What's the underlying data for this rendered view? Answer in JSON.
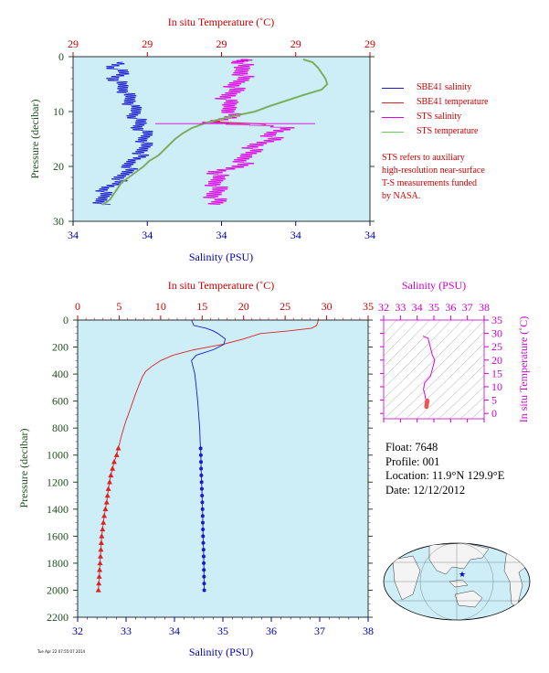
{
  "colors": {
    "plot_bg": "#cdeef7",
    "salinity_axis": "#0000aa",
    "temperature_axis": "#cc0000",
    "ts_axis": "#cc00cc",
    "pressure_axis": "#1f4d1f",
    "sbe_sal": "#1a1acc",
    "sbe_temp": "#dd2222",
    "sts_sal": "#e000e0",
    "sts_temp": "#66cc55"
  },
  "legend": {
    "sbe_sal": "SBE41 salinity",
    "sbe_temp": "SBE41 temperature",
    "sts_sal": "STS salinity",
    "sts_temp": "STS temperature"
  },
  "note": {
    "line1": "STS refers to auxiliary",
    "line2": "high-resolution near-surface",
    "line3": "T-S measurements funded",
    "line4": "by NASA."
  },
  "info": {
    "float": "Float:  7648",
    "profile": "Profile:  001",
    "location": "Location:  11.9°N  129.9°E",
    "date": "Date:  12/12/2012"
  },
  "footnote": "Tue Apr 22 07:55:07 2014",
  "chart_data": [
    {
      "type": "line",
      "xlabel_top": "In situ Temperature (˚C)",
      "xlabel_bottom": "Salinity (PSU)",
      "ylabel": "Pressure (decibar)",
      "top_ticks": [
        "29",
        "29",
        "29",
        "29",
        "29"
      ],
      "bottom_ticks": [
        "34",
        "34",
        "34",
        "34",
        "34"
      ],
      "y_ticks": [
        "0",
        "10",
        "20",
        "30"
      ],
      "ylim": [
        0,
        30
      ],
      "sal_lim": [
        34.15,
        34.55
      ],
      "temp_lim": [
        28.6,
        29.4
      ],
      "series": [
        {
          "key": "sbe_sal",
          "p": [
            1,
            2,
            3,
            4,
            5,
            6,
            7,
            8,
            9,
            10,
            11,
            12,
            13,
            14,
            15,
            16,
            17,
            18,
            19,
            20,
            21,
            22,
            23,
            24,
            25,
            26,
            27
          ],
          "v": [
            34.217,
            34.205,
            34.218,
            34.207,
            34.213,
            34.22,
            34.222,
            34.228,
            34.228,
            34.235,
            34.234,
            34.24,
            34.24,
            34.248,
            34.247,
            34.245,
            34.245,
            34.24,
            34.228,
            34.228,
            34.222,
            34.217,
            34.208,
            34.195,
            34.19,
            34.19,
            34.188
          ]
        },
        {
          "key": "sts_sal",
          "p": [
            0.5,
            1,
            2,
            3,
            4,
            5,
            6,
            7,
            8,
            9,
            10,
            11,
            12,
            13,
            14,
            15,
            16,
            17,
            18,
            19,
            20,
            21,
            22,
            23,
            24,
            25,
            26,
            27
          ],
          "v": [
            34.385,
            34.38,
            34.375,
            34.382,
            34.376,
            34.372,
            34.365,
            34.362,
            34.355,
            34.36,
            34.367,
            34.362,
            34.34,
            34.436,
            34.42,
            34.417,
            34.4,
            34.39,
            34.383,
            34.383,
            34.372,
            34.348,
            34.342,
            34.345,
            34.342,
            34.342,
            34.341,
            34.34
          ]
        },
        {
          "key": "sts_temp",
          "p": [
            0.5,
            1,
            2,
            3,
            4,
            5,
            6,
            7,
            8,
            9,
            10,
            11,
            12,
            13,
            14,
            15,
            16,
            17,
            18,
            19,
            20,
            21,
            22,
            23,
            24,
            25,
            26,
            27
          ],
          "v": [
            29.22,
            29.245,
            29.26,
            29.27,
            29.28,
            29.285,
            29.27,
            29.22,
            29.175,
            29.13,
            29.09,
            29.02,
            28.96,
            28.92,
            28.895,
            28.875,
            28.86,
            28.845,
            28.83,
            28.805,
            28.79,
            28.77,
            28.75,
            28.73,
            28.72,
            28.71,
            28.7,
            28.68
          ]
        },
        {
          "key": "sbe_temp",
          "p": [
            11.9,
            12.2,
            12.4
          ],
          "v": [
            28.98,
            29.1,
            29.12
          ]
        }
      ]
    },
    {
      "type": "line",
      "xlabel_top": "In situ Temperature (˚C)",
      "xlabel_bottom": "Salinity (PSU)",
      "ylabel": "Pressure (decibar)",
      "temp_ticks": [
        0,
        5,
        10,
        15,
        20,
        25,
        30,
        35
      ],
      "sal_ticks": [
        32,
        33,
        34,
        35,
        36,
        37,
        38
      ],
      "p_ticks": [
        0,
        200,
        400,
        600,
        800,
        1000,
        1200,
        1400,
        1600,
        1800,
        2000,
        2200
      ],
      "ylim": [
        0,
        2200
      ],
      "sal_lim": [
        32,
        38
      ],
      "temp_lim": [
        0,
        35
      ],
      "temperature": {
        "p": [
          0,
          40,
          60,
          80,
          100,
          140,
          180,
          220,
          260,
          300,
          340,
          380,
          420,
          480,
          560,
          650,
          750,
          850,
          950,
          1000,
          1050,
          1100,
          1150,
          1200,
          1250,
          1300,
          1350,
          1400,
          1450,
          1500,
          1550,
          1600,
          1650,
          1700,
          1750,
          1800,
          1850,
          1900,
          1950,
          2000
        ],
        "v": [
          29.0,
          28.8,
          28.2,
          25.5,
          22.0,
          20.0,
          17.5,
          14.0,
          11.5,
          10.0,
          9.0,
          8.2,
          7.8,
          7.4,
          6.9,
          6.4,
          5.8,
          5.3,
          4.9,
          4.7,
          4.4,
          4.2,
          4.0,
          3.85,
          3.7,
          3.6,
          3.5,
          3.35,
          3.2,
          3.1,
          3.0,
          2.9,
          2.85,
          2.8,
          2.75,
          2.7,
          2.65,
          2.6,
          2.55,
          2.5
        ]
      },
      "temp_marker_p": [
        950,
        1000,
        1050,
        1100,
        1150,
        1200,
        1250,
        1300,
        1350,
        1400,
        1450,
        1500,
        1550,
        1600,
        1650,
        1700,
        1750,
        1800,
        1850,
        1900,
        1950,
        2000
      ],
      "salinity": {
        "p": [
          0,
          40,
          60,
          80,
          100,
          140,
          180,
          220,
          260,
          300,
          340,
          400,
          500,
          600,
          700,
          800,
          900,
          950,
          1000,
          1100,
          1200,
          1300,
          1400,
          1500,
          1600,
          1700,
          1800,
          1900,
          2000
        ],
        "v": [
          34.35,
          34.4,
          34.65,
          34.8,
          34.9,
          35.05,
          35.02,
          34.8,
          34.45,
          34.35,
          34.38,
          34.42,
          34.45,
          34.48,
          34.5,
          34.52,
          34.53,
          34.54,
          34.545,
          34.55,
          34.56,
          34.57,
          34.58,
          34.585,
          34.59,
          34.6,
          34.605,
          34.61,
          34.615
        ]
      },
      "sal_marker_p": [
        950,
        1000,
        1050,
        1100,
        1150,
        1200,
        1250,
        1300,
        1350,
        1400,
        1450,
        1500,
        1550,
        1600,
        1650,
        1700,
        1750,
        1800,
        1850,
        1900,
        1950,
        2000
      ]
    },
    {
      "type": "scatter",
      "xlabel_top": "Salinity (PSU)",
      "ylabel": "In situ Temperature (˚C)",
      "sal_ticks": [
        32,
        33,
        34,
        35,
        36,
        37,
        38
      ],
      "temp_ticks": [
        0,
        5,
        10,
        15,
        20,
        25,
        30,
        35
      ],
      "sal_lim": [
        32,
        38
      ],
      "temp_lim": [
        -2,
        35
      ],
      "curve": {
        "s": [
          34.35,
          34.4,
          34.65,
          34.9,
          35.05,
          34.8,
          34.45,
          34.38,
          34.45,
          34.5,
          34.53,
          34.55,
          34.57,
          34.59,
          34.61
        ],
        "t": [
          29.0,
          28.8,
          28.2,
          22.0,
          20.0,
          14.0,
          11.5,
          9.0,
          7.4,
          5.8,
          4.9,
          4.2,
          3.6,
          3.0,
          2.5
        ]
      }
    }
  ]
}
